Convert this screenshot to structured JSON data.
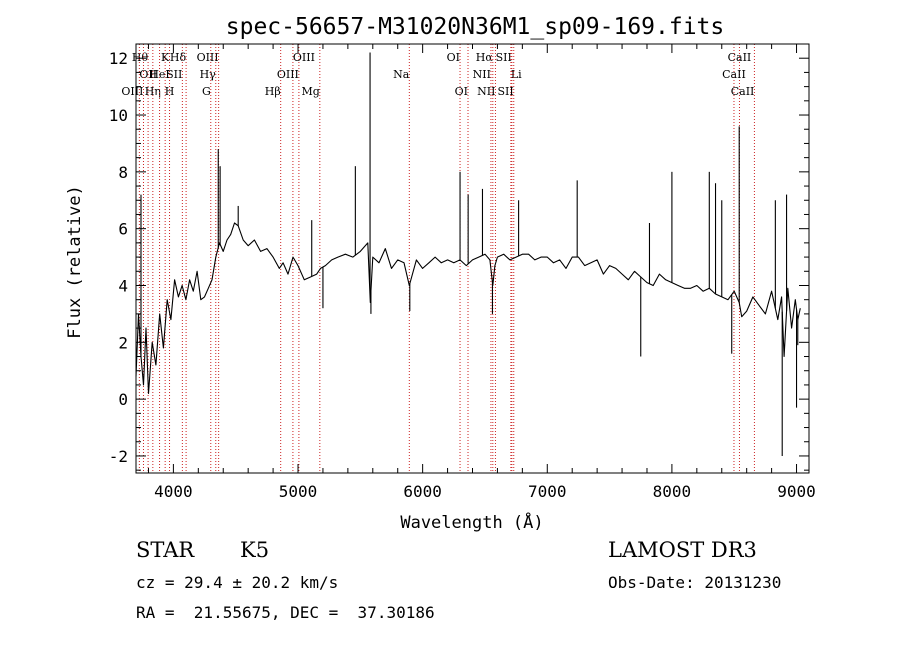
{
  "chart_data": {
    "type": "line",
    "title": "spec-56657-M31020N36M1_sp09-169.fits",
    "xlabel": "Wavelength (Å)",
    "ylabel": "Flux (relative)",
    "xlim": [
      3700,
      9100
    ],
    "ylim": [
      -2.6,
      12.5
    ],
    "x_ticks": [
      4000,
      5000,
      6000,
      7000,
      8000,
      9000
    ],
    "y_ticks": [
      -2,
      0,
      2,
      4,
      6,
      8,
      10,
      12
    ],
    "grid": false,
    "series": [
      {
        "x": [
          3700,
          3720,
          3740,
          3760,
          3780,
          3800,
          3830,
          3860,
          3890,
          3920,
          3950,
          3980,
          4010,
          4040,
          4070,
          4100,
          4130,
          4160,
          4190,
          4220,
          4250,
          4280,
          4310,
          4340,
          4370,
          4400,
          4430,
          4460,
          4490,
          4520,
          4560,
          4600,
          4650,
          4700,
          4750,
          4800,
          4850,
          4880,
          4920,
          4960,
          5000,
          5050,
          5100,
          5150,
          5180,
          5220,
          5270,
          5320,
          5380,
          5440,
          5500,
          5560,
          5580,
          5600,
          5650,
          5700,
          5750,
          5800,
          5850,
          5893,
          5950,
          6000,
          6050,
          6100,
          6150,
          6200,
          6250,
          6300,
          6350,
          6400,
          6450,
          6500,
          6540,
          6563,
          6580,
          6600,
          6650,
          6700,
          6750,
          6800,
          6850,
          6900,
          6950,
          7000,
          7050,
          7100,
          7150,
          7200,
          7250,
          7300,
          7350,
          7400,
          7450,
          7500,
          7550,
          7600,
          7650,
          7700,
          7750,
          7800,
          7850,
          7900,
          7950,
          8000,
          8050,
          8100,
          8150,
          8200,
          8250,
          8300,
          8350,
          8400,
          8450,
          8500,
          8540,
          8560,
          8600,
          8650,
          8700,
          8750,
          8800,
          8850,
          8880,
          8900,
          8930,
          8960,
          8990,
          9010,
          9030
        ],
        "y": [
          0.8,
          3.0,
          1.5,
          0.5,
          2.5,
          0.2,
          2.0,
          1.2,
          3.0,
          1.8,
          3.5,
          2.8,
          4.2,
          3.6,
          4.0,
          3.5,
          4.2,
          3.8,
          4.5,
          3.5,
          3.6,
          3.9,
          4.2,
          5.0,
          5.5,
          5.2,
          5.6,
          5.8,
          6.2,
          6.1,
          5.6,
          5.4,
          5.6,
          5.2,
          5.3,
          5.0,
          4.6,
          4.8,
          4.4,
          5.0,
          4.7,
          4.2,
          4.3,
          4.4,
          4.6,
          4.7,
          4.9,
          5.0,
          5.1,
          5.0,
          5.2,
          5.5,
          3.4,
          5.0,
          4.8,
          5.3,
          4.6,
          4.9,
          4.8,
          4.0,
          4.9,
          4.6,
          4.8,
          5.0,
          4.8,
          4.9,
          4.8,
          4.9,
          4.7,
          4.9,
          5.0,
          5.1,
          4.9,
          4.0,
          4.7,
          5.0,
          5.1,
          4.9,
          5.0,
          5.1,
          5.1,
          4.9,
          5.0,
          5.0,
          4.8,
          4.9,
          4.6,
          5.0,
          5.0,
          4.7,
          4.8,
          4.9,
          4.4,
          4.7,
          4.6,
          4.4,
          4.2,
          4.5,
          4.3,
          4.1,
          4.0,
          4.4,
          4.2,
          4.1,
          4.0,
          3.9,
          3.9,
          4.0,
          3.8,
          3.9,
          3.7,
          3.6,
          3.5,
          3.8,
          3.4,
          2.9,
          3.1,
          3.6,
          3.3,
          3.0,
          3.8,
          2.8,
          3.6,
          1.5,
          3.9,
          2.5,
          3.5,
          2.8,
          3.2
        ]
      }
    ],
    "spikes": [
      {
        "x": 3740,
        "y": 7.2
      },
      {
        "x": 4360,
        "y": 8.8
      },
      {
        "x": 4375,
        "y": 8.2
      },
      {
        "x": 4520,
        "y": 6.8
      },
      {
        "x": 5110,
        "y": 6.3
      },
      {
        "x": 5200,
        "y": 3.2
      },
      {
        "x": 5460,
        "y": 8.2
      },
      {
        "x": 5578,
        "y": 12.2
      },
      {
        "x": 5585,
        "y": 3.0
      },
      {
        "x": 5897,
        "y": 3.1
      },
      {
        "x": 6300,
        "y": 8.0
      },
      {
        "x": 6365,
        "y": 7.2
      },
      {
        "x": 6480,
        "y": 7.4
      },
      {
        "x": 6560,
        "y": 3.0
      },
      {
        "x": 6770,
        "y": 7.0
      },
      {
        "x": 7240,
        "y": 7.7
      },
      {
        "x": 7750,
        "y": 1.5
      },
      {
        "x": 7820,
        "y": 6.2
      },
      {
        "x": 8000,
        "y": 8.0
      },
      {
        "x": 8300,
        "y": 8.0
      },
      {
        "x": 8350,
        "y": 7.6
      },
      {
        "x": 8400,
        "y": 7.0
      },
      {
        "x": 8480,
        "y": 1.6
      },
      {
        "x": 8540,
        "y": 9.6
      },
      {
        "x": 8830,
        "y": 7.0
      },
      {
        "x": 8885,
        "y": -2.0
      },
      {
        "x": 8920,
        "y": 7.2
      },
      {
        "x": 9000,
        "y": -0.3
      },
      {
        "x": 9010,
        "y": 1.9
      }
    ],
    "line_markers": [
      {
        "label": "Hθ",
        "x": 3797,
        "row": 0,
        "align": "end"
      },
      {
        "label": "OII",
        "x": 3727,
        "row": 1,
        "align": "start"
      },
      {
        "label": "OIII",
        "x": 3760,
        "row": 2,
        "align": "end"
      },
      {
        "label": "Hη",
        "x": 3835,
        "row": 2,
        "align": "middle"
      },
      {
        "label": "HeI",
        "x": 3889,
        "row": 1,
        "align": "middle"
      },
      {
        "label": "K",
        "x": 3934,
        "row": 0,
        "align": "middle"
      },
      {
        "label": "SII",
        "x": 4072,
        "row": 1,
        "align": "end"
      },
      {
        "label": "H",
        "x": 3969,
        "row": 2,
        "align": "middle"
      },
      {
        "label": "Hδ",
        "x": 4102,
        "row": 0,
        "align": "end"
      },
      {
        "label": "OIII",
        "x": 4363,
        "row": 0,
        "align": "end"
      },
      {
        "label": "Hγ",
        "x": 4340,
        "row": 1,
        "align": "end"
      },
      {
        "label": "G",
        "x": 4300,
        "row": 2,
        "align": "end"
      },
      {
        "label": "Hβ",
        "x": 4861,
        "row": 2,
        "align": "end"
      },
      {
        "label": "OIII",
        "x": 4959,
        "row": 0,
        "align": "start"
      },
      {
        "label": "OIII",
        "x": 5007,
        "row": 1,
        "align": "end"
      },
      {
        "label": "Mg",
        "x": 5175,
        "row": 2,
        "align": "end"
      },
      {
        "label": "Na",
        "x": 5893,
        "row": 1,
        "align": "end"
      },
      {
        "label": "OI",
        "x": 6300,
        "row": 0,
        "align": "end"
      },
      {
        "label": "OI",
        "x": 6364,
        "row": 2,
        "align": "end"
      },
      {
        "label": "Hα",
        "x": 6563,
        "row": 0,
        "align": "end"
      },
      {
        "label": "SII",
        "x": 6716,
        "row": 0,
        "align": "end"
      },
      {
        "label": "NII",
        "x": 6548,
        "row": 1,
        "align": "end"
      },
      {
        "label": "Li",
        "x": 6708,
        "row": 1,
        "align": "start"
      },
      {
        "label": "NII",
        "x": 6584,
        "row": 2,
        "align": "end"
      },
      {
        "label": "SII",
        "x": 6731,
        "row": 2,
        "align": "end"
      },
      {
        "label": "CaII",
        "x": 8542,
        "row": 0,
        "align": "middle"
      },
      {
        "label": "CaII",
        "x": 8498,
        "row": 1,
        "align": "middle"
      },
      {
        "label": "CaII",
        "x": 8662,
        "row": 2,
        "align": "end"
      }
    ]
  },
  "info": {
    "class_label": "STAR",
    "subclass": "K5",
    "survey": "LAMOST DR3",
    "cz": "cz = 29.4 ± 20.2 km/s",
    "obs_date": "Obs-Date: 20131230",
    "coords": "RA =  21.55675, DEC =  37.30186"
  }
}
